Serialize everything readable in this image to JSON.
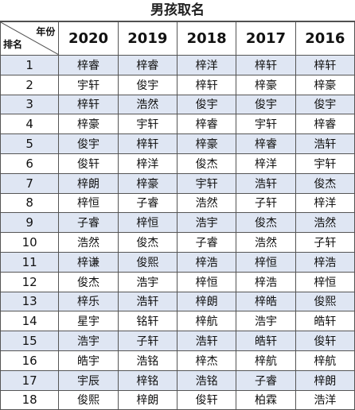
{
  "title": "男孩取名",
  "header": {
    "year_label": "年份",
    "rank_label": "排名",
    "years": [
      "2020",
      "2019",
      "2018",
      "2017",
      "2016"
    ]
  },
  "rows": [
    {
      "rank": "1",
      "names": [
        "梓睿",
        "梓睿",
        "梓洋",
        "梓轩",
        "梓轩"
      ]
    },
    {
      "rank": "2",
      "names": [
        "宇轩",
        "俊宇",
        "梓轩",
        "梓豪",
        "梓豪"
      ]
    },
    {
      "rank": "3",
      "names": [
        "梓轩",
        "浩然",
        "俊宇",
        "俊宇",
        "俊宇"
      ]
    },
    {
      "rank": "4",
      "names": [
        "梓豪",
        "宇轩",
        "梓睿",
        "宇轩",
        "梓睿"
      ]
    },
    {
      "rank": "5",
      "names": [
        "俊宇",
        "梓轩",
        "梓豪",
        "梓睿",
        "浩轩"
      ]
    },
    {
      "rank": "6",
      "names": [
        "俊轩",
        "梓洋",
        "俊杰",
        "梓洋",
        "宇轩"
      ]
    },
    {
      "rank": "7",
      "names": [
        "梓朗",
        "梓豪",
        "宇轩",
        "浩轩",
        "俊杰"
      ]
    },
    {
      "rank": "8",
      "names": [
        "梓恒",
        "子睿",
        "浩然",
        "子轩",
        "梓洋"
      ]
    },
    {
      "rank": "9",
      "names": [
        "子睿",
        "梓恒",
        "浩宇",
        "俊杰",
        "浩然"
      ]
    },
    {
      "rank": "10",
      "names": [
        "浩然",
        "俊杰",
        "子睿",
        "浩然",
        "子轩"
      ]
    },
    {
      "rank": "11",
      "names": [
        "梓谦",
        "俊熙",
        "梓浩",
        "梓恒",
        "梓浩"
      ]
    },
    {
      "rank": "12",
      "names": [
        "俊杰",
        "浩宇",
        "梓恒",
        "梓浩",
        "梓恒"
      ]
    },
    {
      "rank": "13",
      "names": [
        "梓乐",
        "浩轩",
        "梓朗",
        "梓皓",
        "俊熙"
      ]
    },
    {
      "rank": "14",
      "names": [
        "星宇",
        "铭轩",
        "梓航",
        "浩宇",
        "皓轩"
      ]
    },
    {
      "rank": "15",
      "names": [
        "浩宇",
        "子轩",
        "浩轩",
        "皓轩",
        "俊轩"
      ]
    },
    {
      "rank": "16",
      "names": [
        "皓宇",
        "浩铭",
        "梓杰",
        "梓航",
        "梓航"
      ]
    },
    {
      "rank": "17",
      "names": [
        "宇辰",
        "梓铭",
        "浩铭",
        "子睿",
        "梓朗"
      ]
    },
    {
      "rank": "18",
      "names": [
        "俊熙",
        "梓朗",
        "俊轩",
        "柏霖",
        "浩洋"
      ]
    }
  ]
}
